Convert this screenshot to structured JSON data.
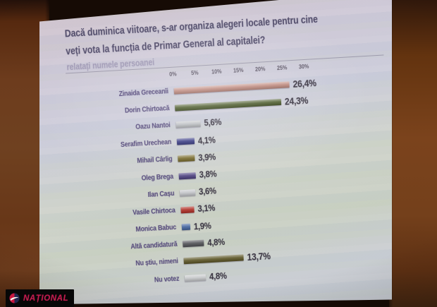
{
  "slide": {
    "question_line1": "Dacă duminica viitoare, s-ar organiza alegeri locale pentru cine",
    "question_line2": "veți vota la funcția de Primar General al capitalei?",
    "question_note": "relatați numele persoanei"
  },
  "chart_data": {
    "type": "bar",
    "orientation": "horizontal",
    "title": "",
    "categories": [
      "Zinaida Greceanîi",
      "Dorin Chirtoacă",
      "Oazu Nantoi",
      "Serafim Urechean",
      "Mihail Cârlig",
      "Oleg Brega",
      "Ilan Cașu",
      "Vasile Chirtoca",
      "Monica Babuc",
      "Altă candidatură",
      "Nu știu, nimeni",
      "Nu votez"
    ],
    "values": [
      26.4,
      24.3,
      5.6,
      4.1,
      3.9,
      3.8,
      3.6,
      3.1,
      1.9,
      4.8,
      13.7,
      4.8
    ],
    "value_labels": [
      "26,4%",
      "24,3%",
      "5,6%",
      "4,1%",
      "3,9%",
      "3,8%",
      "3,6%",
      "3,1%",
      "1,9%",
      "4,8%",
      "13,7%",
      "4,8%"
    ],
    "bar_colors": [
      "#bb8276",
      "#41511e",
      "#b7babe",
      "#2d2f7e",
      "#716321",
      "#473b7c",
      "#c2c4c8",
      "#b02f26",
      "#44659f",
      "#515257",
      "#5c5526",
      "#c5c7c9"
    ],
    "axis": {
      "tick_labels": [
        "0%",
        "5%",
        "10%",
        "15%",
        "20%",
        "25%",
        "30%"
      ],
      "min": 0,
      "max": 30,
      "unit": "%"
    },
    "legend": "none",
    "grid": false
  },
  "watermark": {
    "brand": "NAȚIONAL"
  }
}
